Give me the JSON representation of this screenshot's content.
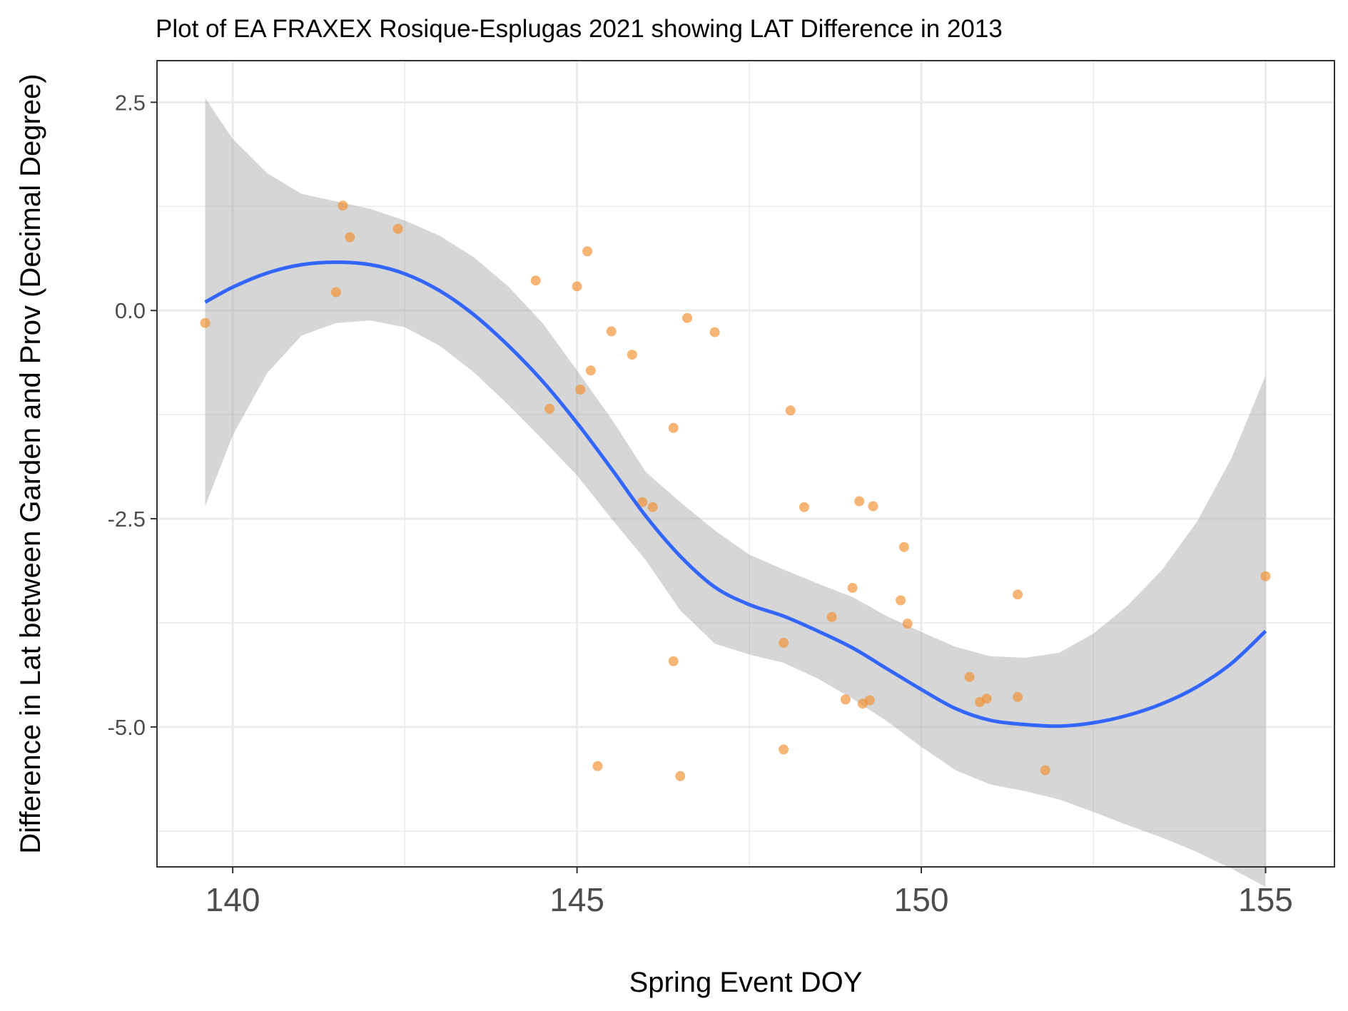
{
  "chart_data": {
    "type": "scatter",
    "title": "Plot of EA FRAXEX Rosique-Esplugas 2021 showing LAT Difference in 2013",
    "xlabel": "Spring Event DOY",
    "ylabel": "Difference in Lat between Garden and Prov (Decimal Degree)",
    "xlim": [
      138.9,
      156.0
    ],
    "ylim": [
      -6.68,
      3.0
    ],
    "x_ticks": [
      140,
      145,
      150,
      155
    ],
    "x_tick_labels": [
      "140",
      "145",
      "150",
      "155"
    ],
    "y_ticks": [
      2.5,
      0.0,
      -2.5,
      -5.0
    ],
    "y_tick_labels": [
      "2.5",
      "0.0",
      "-2.5",
      "-5.0"
    ],
    "grid": true,
    "colors": {
      "points": "#f28e2b",
      "smooth_line": "#3366ff",
      "confidence_band": "#999999",
      "panel_border": "#333333",
      "grid": "#ebebeb"
    },
    "points": [
      {
        "x": 139.6,
        "y": -0.15
      },
      {
        "x": 141.5,
        "y": 0.22
      },
      {
        "x": 141.6,
        "y": 1.26
      },
      {
        "x": 141.7,
        "y": 0.88
      },
      {
        "x": 142.4,
        "y": 0.98
      },
      {
        "x": 144.4,
        "y": 0.36
      },
      {
        "x": 144.6,
        "y": -1.18
      },
      {
        "x": 145.0,
        "y": 0.29
      },
      {
        "x": 145.05,
        "y": -0.95
      },
      {
        "x": 145.15,
        "y": 0.71
      },
      {
        "x": 145.2,
        "y": -0.72
      },
      {
        "x": 145.3,
        "y": -5.47
      },
      {
        "x": 145.5,
        "y": -0.25
      },
      {
        "x": 145.8,
        "y": -0.53
      },
      {
        "x": 145.95,
        "y": -2.3
      },
      {
        "x": 146.1,
        "y": -2.36
      },
      {
        "x": 146.4,
        "y": -1.41
      },
      {
        "x": 146.4,
        "y": -4.21
      },
      {
        "x": 146.5,
        "y": -5.59
      },
      {
        "x": 146.6,
        "y": -0.09
      },
      {
        "x": 147.0,
        "y": -0.26
      },
      {
        "x": 148.0,
        "y": -3.99
      },
      {
        "x": 148.0,
        "y": -5.27
      },
      {
        "x": 148.1,
        "y": -1.2
      },
      {
        "x": 148.3,
        "y": -2.36
      },
      {
        "x": 148.7,
        "y": -3.68
      },
      {
        "x": 148.9,
        "y": -4.67
      },
      {
        "x": 149.0,
        "y": -3.33
      },
      {
        "x": 149.1,
        "y": -2.29
      },
      {
        "x": 149.15,
        "y": -4.72
      },
      {
        "x": 149.25,
        "y": -4.68
      },
      {
        "x": 149.3,
        "y": -2.35
      },
      {
        "x": 149.7,
        "y": -3.48
      },
      {
        "x": 149.75,
        "y": -2.84
      },
      {
        "x": 149.8,
        "y": -3.76
      },
      {
        "x": 150.7,
        "y": -4.4
      },
      {
        "x": 150.85,
        "y": -4.7
      },
      {
        "x": 150.95,
        "y": -4.66
      },
      {
        "x": 151.4,
        "y": -3.41
      },
      {
        "x": 151.4,
        "y": -4.64
      },
      {
        "x": 151.8,
        "y": -5.52
      },
      {
        "x": 155.0,
        "y": -3.19
      }
    ],
    "smooth": {
      "x": [
        139.6,
        140.0,
        140.5,
        141.0,
        141.5,
        142.0,
        142.5,
        143.0,
        143.5,
        144.0,
        144.5,
        145.0,
        145.5,
        146.0,
        146.5,
        147.0,
        147.5,
        148.0,
        148.5,
        149.0,
        149.5,
        150.0,
        150.5,
        151.0,
        151.5,
        152.0,
        152.5,
        153.0,
        153.5,
        154.0,
        154.5,
        155.0
      ],
      "y": [
        0.1,
        0.28,
        0.45,
        0.55,
        0.58,
        0.55,
        0.44,
        0.24,
        -0.05,
        -0.42,
        -0.85,
        -1.35,
        -1.9,
        -2.47,
        -2.95,
        -3.32,
        -3.53,
        -3.67,
        -3.85,
        -4.05,
        -4.3,
        -4.55,
        -4.78,
        -4.92,
        -4.97,
        -4.99,
        -4.95,
        -4.86,
        -4.72,
        -4.52,
        -4.24,
        -3.85
      ],
      "lower": [
        -2.35,
        -1.5,
        -0.75,
        -0.3,
        -0.15,
        -0.12,
        -0.2,
        -0.42,
        -0.74,
        -1.13,
        -1.55,
        -1.98,
        -2.5,
        -3.0,
        -3.6,
        -4.0,
        -4.13,
        -4.23,
        -4.42,
        -4.66,
        -4.93,
        -5.24,
        -5.52,
        -5.69,
        -5.77,
        -5.87,
        -6.02,
        -6.18,
        -6.33,
        -6.5,
        -6.7,
        -6.92
      ],
      "upper": [
        2.55,
        2.06,
        1.65,
        1.4,
        1.31,
        1.22,
        1.08,
        0.9,
        0.64,
        0.29,
        -0.15,
        -0.72,
        -1.3,
        -1.94,
        -2.3,
        -2.64,
        -2.93,
        -3.11,
        -3.28,
        -3.44,
        -3.67,
        -3.86,
        -4.04,
        -4.15,
        -4.17,
        -4.11,
        -3.88,
        -3.54,
        -3.11,
        -2.54,
        -1.78,
        -0.78
      ]
    }
  }
}
